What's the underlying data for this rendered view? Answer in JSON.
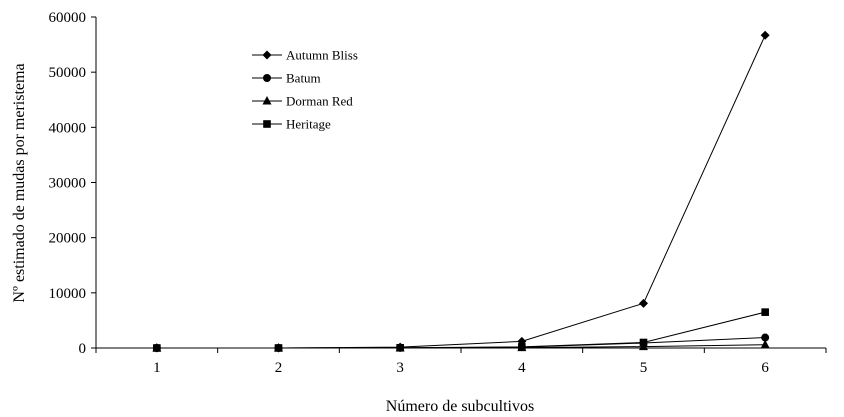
{
  "chart_data": {
    "type": "line",
    "xlabel": "Número de subcultivos",
    "ylabel": "Nº estimado de mudas por meristema",
    "x": [
      1,
      2,
      3,
      4,
      5,
      6
    ],
    "xlim": [
      0.5,
      6.5
    ],
    "ylim": [
      0,
      60000
    ],
    "yticks": [
      0,
      10000,
      20000,
      30000,
      40000,
      50000,
      60000
    ],
    "grid": false,
    "legend_position": "top-left",
    "series": [
      {
        "name": "Autumn Bliss",
        "marker": "diamond",
        "values": [
          1,
          10,
          150,
          1200,
          8100,
          56700
        ]
      },
      {
        "name": "Batum",
        "marker": "circle",
        "values": [
          1,
          5,
          30,
          150,
          900,
          1900
        ]
      },
      {
        "name": "Dorman Red",
        "marker": "triangle",
        "values": [
          1,
          3,
          15,
          60,
          250,
          600
        ]
      },
      {
        "name": "Heritage",
        "marker": "square",
        "values": [
          1,
          6,
          40,
          200,
          1000,
          6500
        ]
      }
    ]
  }
}
